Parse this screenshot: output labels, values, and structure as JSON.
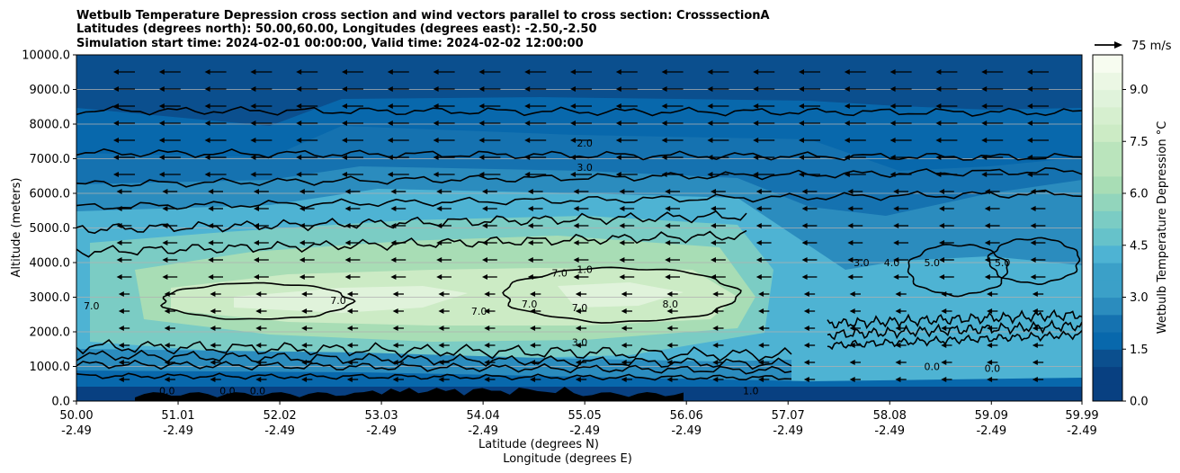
{
  "chart_data": {
    "type": "contour",
    "title_lines": [
      "Wetbulb Temperature Depression cross section and wind vectors parallel to cross section: CrosssectionA",
      "Latitudes (degrees north): 50.00,60.00, Longitudes (degrees east): -2.50,-2.50",
      "Simulation start time: 2024-02-01 00:00:00, Valid time: 2024-02-02 12:00:00"
    ],
    "ylabel": "Altitude (meters)",
    "xlabel_lines": [
      "Latitude (degrees N)",
      "Longitude (degrees E)"
    ],
    "ylim": [
      0,
      10000
    ],
    "y_ticks": [
      "0.0",
      "1000.0",
      "2000.0",
      "3000.0",
      "4000.0",
      "5000.0",
      "6000.0",
      "7000.0",
      "8000.0",
      "9000.0",
      "10000.0"
    ],
    "x_ticks": [
      {
        "lat": "50.00",
        "lon": "-2.49"
      },
      {
        "lat": "51.01",
        "lon": "-2.49"
      },
      {
        "lat": "52.02",
        "lon": "-2.49"
      },
      {
        "lat": "53.03",
        "lon": "-2.49"
      },
      {
        "lat": "54.04",
        "lon": "-2.49"
      },
      {
        "lat": "55.05",
        "lon": "-2.49"
      },
      {
        "lat": "56.06",
        "lon": "-2.49"
      },
      {
        "lat": "57.07",
        "lon": "-2.49"
      },
      {
        "lat": "58.08",
        "lon": "-2.49"
      },
      {
        "lat": "59.09",
        "lon": "-2.49"
      },
      {
        "lat": "59.99",
        "lon": "-2.49"
      }
    ],
    "xlim": [
      50.0,
      59.99
    ],
    "grid": "horizontal",
    "colorbar": {
      "label": "Wetbulb Temperature Depression °C",
      "ticks": [
        "0.0",
        "1.5",
        "3.0",
        "4.5",
        "6.0",
        "7.5",
        "9.0"
      ],
      "range": [
        0.0,
        10.0
      ],
      "colors": [
        "#084081",
        "#0868ac",
        "#2b8cbe",
        "#4eb3d3",
        "#7bccc4",
        "#a8ddb5",
        "#ccebc5",
        "#e0f3db",
        "#f7fcf0"
      ]
    },
    "quiver_key": "75 m/s",
    "contour_levels": [
      {
        "label": "2.0",
        "lat": 55.05,
        "alt": 7350
      },
      {
        "label": "3.0",
        "lat": 55.05,
        "alt": 6650
      },
      {
        "label": "7.0",
        "lat": 50.15,
        "alt": 2650
      },
      {
        "label": "7.0",
        "lat": 52.6,
        "alt": 2800
      },
      {
        "label": "7.0",
        "lat": 54.0,
        "alt": 2500
      },
      {
        "label": "7.0",
        "lat": 54.8,
        "alt": 3600
      },
      {
        "label": "1.0",
        "lat": 55.05,
        "alt": 3700
      },
      {
        "label": "7.0",
        "lat": 54.5,
        "alt": 2700
      },
      {
        "label": "7.0",
        "lat": 55.0,
        "alt": 2600
      },
      {
        "label": "8.0",
        "lat": 55.9,
        "alt": 2700
      },
      {
        "label": "3.0",
        "lat": 55.0,
        "alt": 1600
      },
      {
        "label": "1.0",
        "lat": 56.7,
        "alt": 200
      },
      {
        "label": "3.0",
        "lat": 57.8,
        "alt": 3900
      },
      {
        "label": "4.0",
        "lat": 58.1,
        "alt": 3900
      },
      {
        "label": "5.0",
        "lat": 58.5,
        "alt": 3900
      },
      {
        "label": "5.0",
        "lat": 59.2,
        "alt": 3900
      },
      {
        "label": "0.0",
        "lat": 58.5,
        "alt": 900
      },
      {
        "label": "0.0",
        "lat": 59.1,
        "alt": 850
      },
      {
        "label": "0.0",
        "lat": 50.9,
        "alt": 200
      },
      {
        "label": "0.0",
        "lat": 51.5,
        "alt": 200
      },
      {
        "label": "0.0",
        "lat": 51.8,
        "alt": 200
      }
    ]
  }
}
